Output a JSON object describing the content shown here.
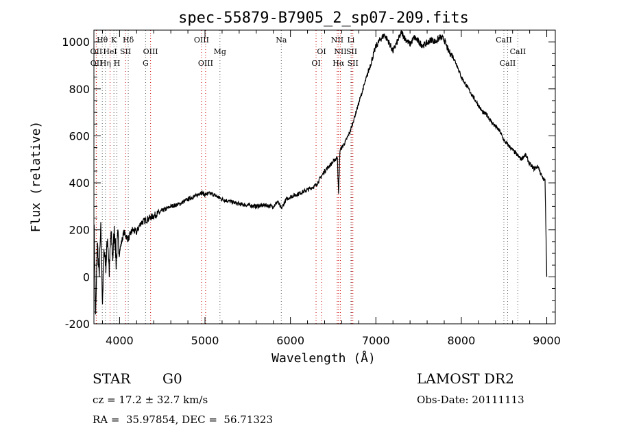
{
  "chart_data": {
    "type": "line",
    "title": "spec-55879-B7905_2_sp07-209.fits",
    "xlabel": "Wavelength (Å)",
    "ylabel": "Flux (relative)",
    "xlim": [
      3700,
      9100
    ],
    "ylim": [
      -200,
      1050
    ],
    "xticks": [
      4000,
      5000,
      6000,
      7000,
      8000,
      9000
    ],
    "yticks": [
      -200,
      0,
      200,
      400,
      600,
      800,
      1000
    ],
    "grid": false,
    "series": [
      {
        "x": [
          3700,
          3720,
          3740,
          3760,
          3780,
          3800,
          3820,
          3840,
          3860,
          3880,
          3900,
          3920,
          3940,
          3960,
          3980,
          4000,
          4050,
          4100,
          4150,
          4200,
          4250,
          4300,
          4350,
          4400,
          4450,
          4500,
          4600,
          4700,
          4800,
          4900,
          4950,
          5000,
          5050,
          5100,
          5200,
          5300,
          5400,
          5500,
          5600,
          5700,
          5800,
          5850,
          5893,
          5950,
          6000,
          6100,
          6200,
          6300,
          6350,
          6400,
          6450,
          6500,
          6550,
          6563,
          6580,
          6620,
          6650,
          6700,
          6750,
          6800,
          6850,
          6900,
          6950,
          7000,
          7050,
          7100,
          7150,
          7200,
          7250,
          7300,
          7350,
          7400,
          7450,
          7500,
          7550,
          7600,
          7650,
          7700,
          7750,
          7800,
          7850,
          7900,
          7950,
          8000,
          8050,
          8100,
          8150,
          8200,
          8250,
          8300,
          8350,
          8400,
          8450,
          8500,
          8550,
          8600,
          8650,
          8700,
          8750,
          8800,
          8850,
          8900,
          8950,
          8980,
          9000
        ],
        "y": [
          250,
          -180,
          150,
          0,
          200,
          -100,
          120,
          50,
          170,
          20,
          190,
          80,
          210,
          60,
          170,
          110,
          190,
          160,
          200,
          190,
          230,
          240,
          250,
          260,
          270,
          280,
          300,
          310,
          330,
          345,
          360,
          350,
          355,
          350,
          330,
          320,
          310,
          305,
          300,
          305,
          300,
          320,
          290,
          330,
          340,
          355,
          370,
          390,
          420,
          450,
          470,
          490,
          510,
          350,
          540,
          560,
          580,
          620,
          680,
          740,
          800,
          860,
          920,
          980,
          1010,
          1030,
          1000,
          960,
          1000,
          1040,
          1010,
          990,
          1020,
          1000,
          985,
          995,
          1010,
          1000,
          1020,
          1010,
          960,
          940,
          900,
          850,
          820,
          790,
          760,
          730,
          700,
          690,
          660,
          640,
          620,
          580,
          560,
          540,
          520,
          500,
          520,
          480,
          460,
          470,
          420,
          410,
          0
        ]
      }
    ],
    "line_marks": [
      {
        "label": "Hθ",
        "x": 3798,
        "row": 1,
        "emission": false
      },
      {
        "label": "K",
        "x": 3934,
        "row": 1,
        "emission": false
      },
      {
        "label": "Hδ",
        "x": 4102,
        "row": 1,
        "emission": false
      },
      {
        "label": "OII",
        "x": 3727,
        "row": 2,
        "emission": true
      },
      {
        "label": "HeI",
        "x": 3889,
        "row": 2,
        "emission": true
      },
      {
        "label": "SII",
        "x": 4070,
        "row": 2,
        "emission": true
      },
      {
        "label": "OIII",
        "x": 4363,
        "row": 2,
        "emission": true
      },
      {
        "label": "OII",
        "x": 3729,
        "row": 3,
        "emission": true
      },
      {
        "label": "Hη",
        "x": 3835,
        "row": 3,
        "emission": false
      },
      {
        "label": "H",
        "x": 3969,
        "row": 3,
        "emission": false
      },
      {
        "label": "G",
        "x": 4305,
        "row": 3,
        "emission": false
      },
      {
        "label": "OIII",
        "x": 4959,
        "row": 1,
        "emission": true
      },
      {
        "label": "OIII",
        "x": 5007,
        "row": 3,
        "emission": true
      },
      {
        "label": "Mg",
        "x": 5175,
        "row": 2,
        "emission": false
      },
      {
        "label": "Na",
        "x": 5893,
        "row": 1,
        "emission": false
      },
      {
        "label": "OI",
        "x": 6300,
        "row": 3,
        "emission": true
      },
      {
        "label": "OI",
        "x": 6364,
        "row": 2,
        "emission": true
      },
      {
        "label": "NII",
        "x": 6548,
        "row": 1,
        "emission": true
      },
      {
        "label": "NII",
        "x": 6584,
        "row": 2,
        "emission": true
      },
      {
        "label": "Hα",
        "x": 6563,
        "row": 3,
        "emission": true
      },
      {
        "label": "Li",
        "x": 6708,
        "row": 1,
        "emission": false
      },
      {
        "label": "SII",
        "x": 6717,
        "row": 2,
        "emission": true
      },
      {
        "label": "SII",
        "x": 6731,
        "row": 3,
        "emission": true
      },
      {
        "label": "CaII",
        "x": 8498,
        "row": 1,
        "emission": false
      },
      {
        "label": "CaII",
        "x": 8542,
        "row": 3,
        "emission": false
      },
      {
        "label": "CaII",
        "x": 8662,
        "row": 2,
        "emission": false
      }
    ],
    "colors": {
      "line": "#000000",
      "emission_marker": "#cc0000",
      "absorption_marker": "#555555"
    }
  },
  "info": {
    "class_label": "STAR",
    "subclass_label": "G0",
    "survey": "LAMOST DR2",
    "cz": "cz = 17.2 ± 32.7 km/s",
    "obs_date": "Obs-Date: 20111113",
    "coords": "RA =  35.97854, DEC =  56.71323"
  }
}
